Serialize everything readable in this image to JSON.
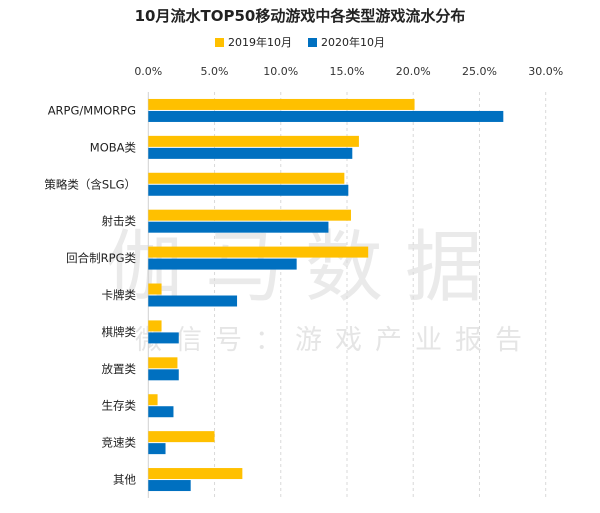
{
  "chart_data": {
    "type": "bar",
    "orientation": "horizontal",
    "title": "10月流水TOP50移动游戏中各类型游戏流水分布",
    "xlabel": "",
    "ylabel": "",
    "xlim": [
      0,
      30
    ],
    "x_ticks": [
      "0.0%",
      "5.0%",
      "10.0%",
      "15.0%",
      "20.0%",
      "25.0%",
      "30.0%"
    ],
    "grid": true,
    "legend_position": "top",
    "categories": [
      "ARPG/MMORPG",
      "MOBA类",
      "策略类（含SLG）",
      "射击类",
      "回合制RPG类",
      "卡牌类",
      "棋牌类",
      "放置类",
      "生存类",
      "竞速类",
      "其他"
    ],
    "series": [
      {
        "name": "2019年10月",
        "color": "#FFC000",
        "values": [
          20.1,
          15.9,
          14.8,
          15.3,
          16.6,
          1.0,
          1.0,
          2.2,
          0.7,
          5.0,
          7.1
        ]
      },
      {
        "name": "2020年10月",
        "color": "#0070C0",
        "values": [
          26.8,
          15.4,
          15.1,
          13.6,
          11.2,
          6.7,
          2.3,
          2.3,
          1.9,
          1.3,
          3.2
        ]
      }
    ]
  },
  "watermark": {
    "main": "伽马数据",
    "sub": "微信号：游戏产业报告"
  }
}
